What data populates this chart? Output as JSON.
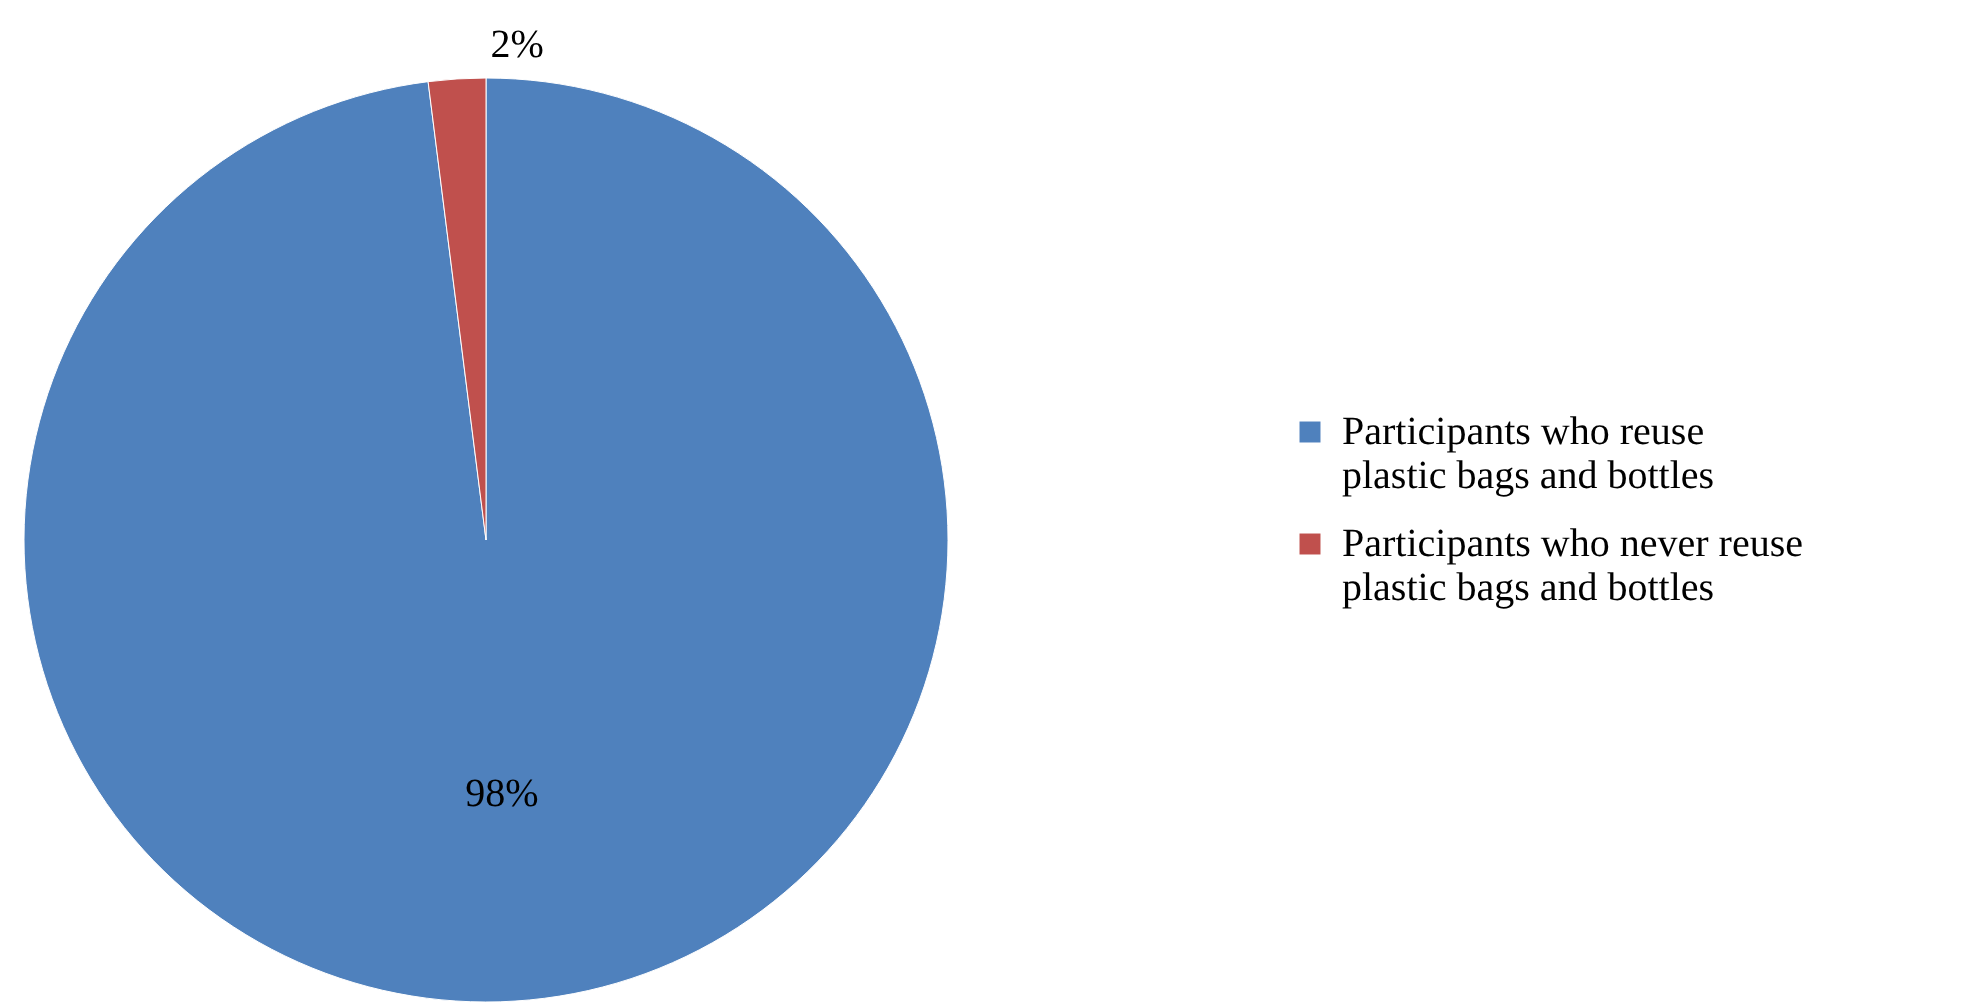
{
  "chart_data": {
    "type": "pie",
    "categories": [
      "Participants who reuse plastic bags and bottles",
      "Participants who never reuse plastic bags and bottles"
    ],
    "values": [
      98,
      2
    ],
    "colors": [
      "#4f81bd",
      "#c0504d"
    ],
    "value_labels": [
      "98%",
      "2%"
    ],
    "legend": "right"
  }
}
